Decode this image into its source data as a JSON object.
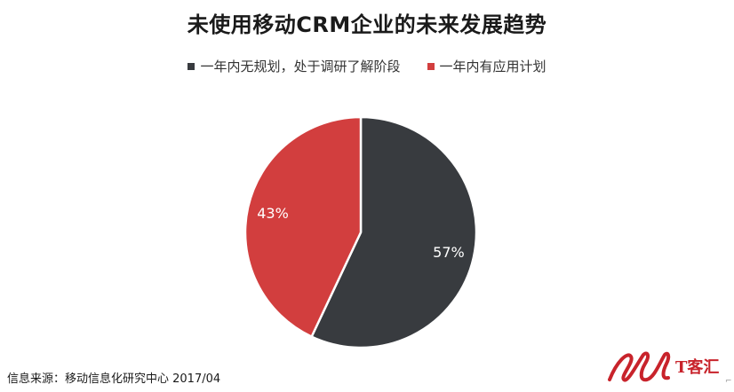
{
  "title": "未使用移动CRM企业的未来发展趋势",
  "source": "信息来源：移动信息化研究中心 2017/04",
  "logo": {
    "text": "T客汇",
    "color": "#c8232b"
  },
  "corner_mark": "⌐",
  "chart_data": {
    "type": "pie",
    "title": "未使用移动CRM企业的未来发展趋势",
    "labels": [
      "一年内无规划，处于调研了解阶段",
      "一年内有应用计划"
    ],
    "values": [
      57,
      43
    ],
    "data_labels": [
      "57%",
      "43%"
    ],
    "colors": [
      "#383b3f",
      "#d23e3e"
    ],
    "start_angle_deg": 0,
    "direction": "clockwise",
    "legend_position": "top"
  }
}
